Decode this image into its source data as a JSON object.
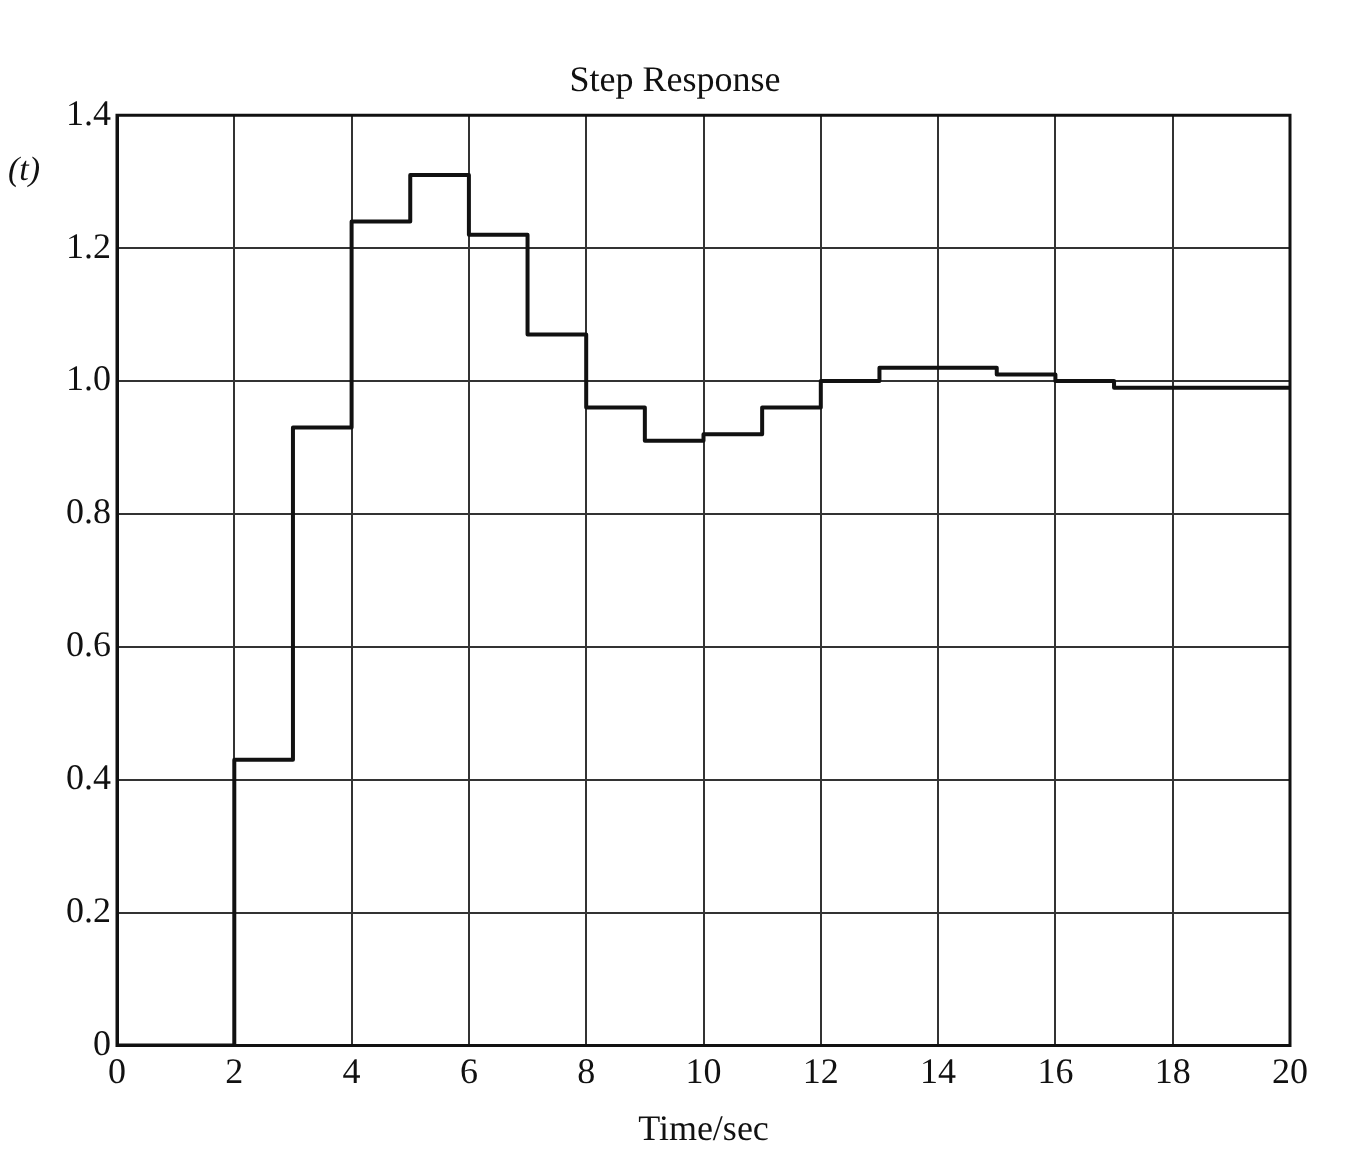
{
  "chart_data": {
    "type": "step",
    "title": "Step Response",
    "xlabel": "Time/sec",
    "ylabel": "(t)",
    "x": [
      0,
      1,
      2,
      3,
      4,
      5,
      6,
      7,
      8,
      9,
      10,
      11,
      12,
      13,
      14,
      15,
      16,
      17,
      18,
      19,
      20
    ],
    "series": [
      {
        "color": "#111111",
        "values": [
          0,
          0,
          0.43,
          0.93,
          1.24,
          1.31,
          1.22,
          1.07,
          0.96,
          0.91,
          0.92,
          0.96,
          1.0,
          1.02,
          1.02,
          1.01,
          1.0,
          0.99,
          0.99,
          0.99,
          0.99
        ]
      }
    ],
    "xlim": [
      0,
      20
    ],
    "xticks": [
      0,
      2,
      4,
      6,
      8,
      10,
      12,
      14,
      16,
      18,
      20
    ],
    "ylim": [
      0,
      1.4
    ],
    "yticks": [
      0,
      0.2,
      0.4,
      0.6,
      0.8,
      {
        "value": 1,
        "label": "1.0"
      },
      1.2,
      1.4
    ],
    "grid": true,
    "line_style": "solid",
    "marker": "none"
  }
}
